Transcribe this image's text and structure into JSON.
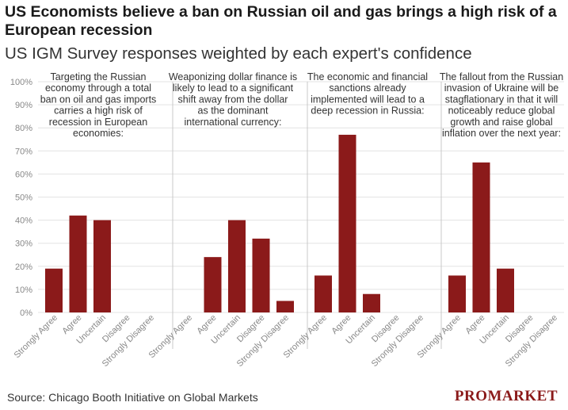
{
  "header": {
    "title": "US Economists believe a ban on Russian oil and gas brings a high risk of a European recession",
    "subtitle": "US IGM Survey responses weighted by each expert's confidence"
  },
  "footer": {
    "source": "Source: Chicago Booth Initiative on Global Markets",
    "logo": "PROMARKET"
  },
  "colors": {
    "bar": "#8b1a1a",
    "grid": "#e3e3e3",
    "axis_label": "#888888",
    "divider": "#c8c8c8"
  },
  "chart_data": [
    {
      "type": "bar",
      "title": [
        "Targeting the Russian",
        "economy through a total",
        "ban on oil and gas imports",
        "carries a high risk of",
        "recession in European",
        "economies:"
      ],
      "categories": [
        "Strongly Agree",
        "Agree",
        "Uncertain",
        "Disagree",
        "Strongly Disagree"
      ],
      "values": [
        19,
        42,
        40,
        0,
        0
      ],
      "ylim": [
        0,
        100
      ],
      "yticks": [
        "0%",
        "10%",
        "20%",
        "30%",
        "40%",
        "50%",
        "60%",
        "70%",
        "80%",
        "90%",
        "100%"
      ]
    },
    {
      "type": "bar",
      "title": [
        "Weaponizing dollar finance is",
        "likely to lead to a significant",
        "shift away from the dollar",
        "as the dominant",
        "international currency:"
      ],
      "categories": [
        "Strongly Agree",
        "Agree",
        "Uncertain",
        "Disagree",
        "Strongly Disagree"
      ],
      "values": [
        0,
        24,
        40,
        32,
        5
      ],
      "ylim": [
        0,
        100
      ]
    },
    {
      "type": "bar",
      "title": [
        "The economic and financial",
        "sanctions already",
        "implemented will lead to a",
        "deep recession in Russia:"
      ],
      "categories": [
        "Strongly Agree",
        "Agree",
        "Uncertain",
        "Disagree",
        "Strongly Disagree"
      ],
      "values": [
        16,
        77,
        8,
        0,
        0
      ],
      "ylim": [
        0,
        100
      ]
    },
    {
      "type": "bar",
      "title": [
        "The fallout from the Russian",
        "invasion of Ukraine will be",
        "stagflationary in that it will",
        "noticeably reduce global",
        "growth and raise global",
        "inflation over the next year:"
      ],
      "categories": [
        "Strongly Agree",
        "Agree",
        "Uncertain",
        "Disagree",
        "Strongly Disagree"
      ],
      "values": [
        16,
        65,
        19,
        0,
        0
      ],
      "ylim": [
        0,
        100
      ]
    }
  ]
}
